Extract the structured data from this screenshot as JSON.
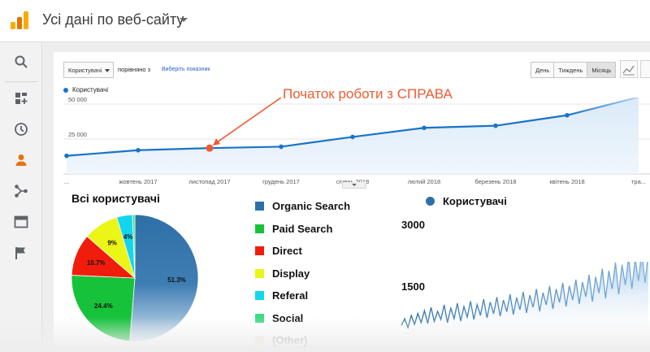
{
  "header": {
    "title": "Усі дані по веб-сайту"
  },
  "sidebar": {
    "items": [
      "search-icon",
      "dashboard-icon",
      "clock-icon",
      "person-icon",
      "acquisition-icon",
      "behavior-icon",
      "flag-icon"
    ]
  },
  "controls": {
    "metric_select": "Користувачі",
    "compare_label": "порівняно з",
    "compare_link": "Виберіть показник",
    "periods": [
      {
        "label": "День",
        "active": false
      },
      {
        "label": "Тиждень",
        "active": false
      },
      {
        "label": "Місяць",
        "active": true
      }
    ]
  },
  "annotation": {
    "text": "Початок роботи з СПРАВА",
    "color": "#ef5b32"
  },
  "colors": {
    "accent": "#1a73c8",
    "annotation": "#ef5b32",
    "pie_blue": "#2e6fa8"
  },
  "chart_data": [
    {
      "type": "line",
      "legend": "Користувачі",
      "y_ticks": [
        "50 000",
        "25 000"
      ],
      "ylim": [
        0,
        50000
      ],
      "x_labels": [
        "...",
        "жовтень 2017",
        "листопад 2017",
        "грудень 2017",
        "січень 2018",
        "лютий 2018",
        "березень 2018",
        "квітень 2018",
        "тра..."
      ],
      "series": [
        {
          "name": "Користувачі",
          "values": [
            13000,
            17000,
            18500,
            19500,
            26500,
            33000,
            34500,
            42000,
            55000
          ]
        }
      ],
      "highlight_index": 2,
      "grid": true
    },
    {
      "type": "pie",
      "title": "Всі користувачі",
      "slices": [
        {
          "label": "Organic Search",
          "value": 51.3,
          "color": "#2e6fa8",
          "shown": "51.3%"
        },
        {
          "label": "Paid Search",
          "value": 24.4,
          "color": "#16c23a",
          "shown": "24.4%"
        },
        {
          "label": "Direct",
          "value": 10.7,
          "color": "#f01d0d",
          "shown": "10.7%"
        },
        {
          "label": "Display",
          "value": 9.0,
          "color": "#ebf516",
          "shown": "9%"
        },
        {
          "label": "Referal",
          "value": 4.0,
          "color": "#13d6ee",
          "shown": "4%"
        },
        {
          "label": "Social",
          "value": 0.6,
          "color": "#3fdb82",
          "shown": ""
        }
      ]
    },
    {
      "type": "line",
      "legend": "Користувачі",
      "y_ticks": [
        "3000",
        "1500"
      ],
      "ylim": [
        0,
        3000
      ],
      "series": [
        {
          "name": "Користувачі",
          "values": [
            350,
            520,
            300,
            600,
            380,
            650,
            420,
            720,
            400,
            800,
            450,
            700,
            500,
            860,
            420,
            780,
            520,
            900,
            460,
            820,
            560,
            950,
            500,
            870,
            600,
            1000,
            540,
            930,
            640,
            1050,
            580,
            980,
            690,
            1120,
            620,
            1040,
            740,
            1180,
            660,
            1100,
            800,
            1250,
            700,
            1160,
            860,
            1320,
            760,
            1250,
            920,
            1400,
            820,
            1330,
            980,
            1480,
            880,
            1420,
            1060,
            1600,
            940,
            1550,
            1150,
            1750,
            1020,
            1700,
            1250,
            1900,
            1120,
            1850,
            1350,
            2050,
            1250,
            2000,
            1450,
            2200,
            1400,
            2150
          ]
        }
      ]
    }
  ],
  "legend2": [
    {
      "label": "Organic Search",
      "color": "#2e6fa8"
    },
    {
      "label": "Paid Search",
      "color": "#16c23a"
    },
    {
      "label": "Direct",
      "color": "#f01d0d"
    },
    {
      "label": "Display",
      "color": "#ebf516"
    },
    {
      "label": "Referal",
      "color": "#13d6ee"
    },
    {
      "label": "Social",
      "color": "#3fdb82"
    },
    {
      "label": "(Other)",
      "color": "#f5c4a8"
    }
  ]
}
